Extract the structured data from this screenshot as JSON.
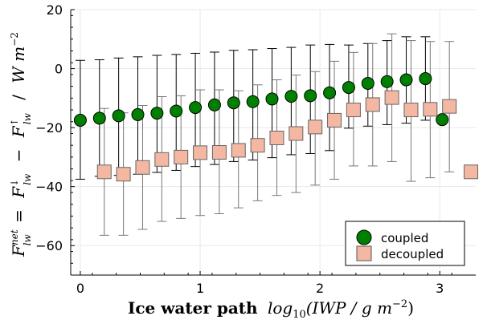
{
  "chart_data": {
    "type": "scatter",
    "xlabel": {
      "bold": "Ice water path",
      "italic": "log",
      "sub": "10",
      "rest": "(IWP / g m",
      "sup": "−2",
      "close": ")"
    },
    "ylabel": "F_lw^net = F_lw^↓ − F_lw^↑ / W m^−2",
    "xlim": [
      -0.08,
      3.3
    ],
    "ylim": [
      -70,
      20
    ],
    "xticks": [
      0,
      1,
      2,
      3
    ],
    "yticks": [
      -60,
      -40,
      -20,
      0,
      20
    ],
    "grid": true,
    "legend_position": "bottom-right",
    "series": [
      {
        "name": "coupled",
        "marker": "circle",
        "color": "#008000",
        "x": [
          0.0,
          0.16,
          0.32,
          0.48,
          0.64,
          0.8,
          0.96,
          1.12,
          1.28,
          1.44,
          1.6,
          1.76,
          1.92,
          2.08,
          2.24,
          2.4,
          2.56,
          2.72,
          2.88,
          3.02
        ],
        "y": [
          -17.5,
          -16.8,
          -16.0,
          -15.6,
          -15.1,
          -14.4,
          -13.2,
          -12.3,
          -11.6,
          -11.2,
          -10.3,
          -9.4,
          -9.2,
          -8.2,
          -6.4,
          -5.0,
          -4.4,
          -3.8,
          -3.4,
          -17.3
        ],
        "err_low": [
          -37.5,
          -36.5,
          -36.2,
          -35.8,
          -35.2,
          -34.5,
          -33.2,
          -32.5,
          -31.5,
          -31.0,
          -30.2,
          -29.2,
          -28.8,
          -27.8,
          -20.2,
          -19.5,
          -19.0,
          -18.5,
          -17.5,
          null
        ],
        "err_high": [
          2.8,
          3.0,
          3.6,
          4.0,
          4.5,
          4.8,
          5.2,
          5.6,
          6.2,
          6.4,
          6.8,
          7.2,
          8.0,
          8.2,
          8.0,
          8.5,
          9.5,
          10.8,
          10.8,
          null
        ]
      },
      {
        "name": "decoupled",
        "marker": "square",
        "color": "#f3b7a2",
        "x": [
          0.2,
          0.36,
          0.52,
          0.68,
          0.84,
          1.0,
          1.16,
          1.32,
          1.48,
          1.64,
          1.8,
          1.96,
          2.12,
          2.28,
          2.44,
          2.6,
          2.76,
          2.92,
          3.08,
          3.26
        ],
        "y": [
          -35.0,
          -35.8,
          -33.5,
          -30.8,
          -30.0,
          -28.5,
          -28.4,
          -27.7,
          -26.0,
          -23.5,
          -22.0,
          -19.8,
          -17.5,
          -14.0,
          -12.2,
          -9.8,
          -14.0,
          -13.8,
          -12.8,
          -35.0
        ],
        "err_low": [
          -56.5,
          -56.5,
          -54.5,
          -51.8,
          -50.8,
          -49.8,
          -49.2,
          -47.2,
          -44.8,
          -43.0,
          -42.0,
          -39.5,
          -37.5,
          -33.0,
          -33.0,
          -31.5,
          -38.2,
          -37.0,
          -35.0,
          null
        ],
        "err_high": [
          -13.5,
          -15.0,
          -12.5,
          -9.5,
          -9.2,
          -7.2,
          -7.2,
          -7.5,
          -5.5,
          -3.8,
          -2.2,
          -1.0,
          2.5,
          5.5,
          8.5,
          11.8,
          9.5,
          9.2,
          9.2,
          null
        ]
      }
    ]
  }
}
